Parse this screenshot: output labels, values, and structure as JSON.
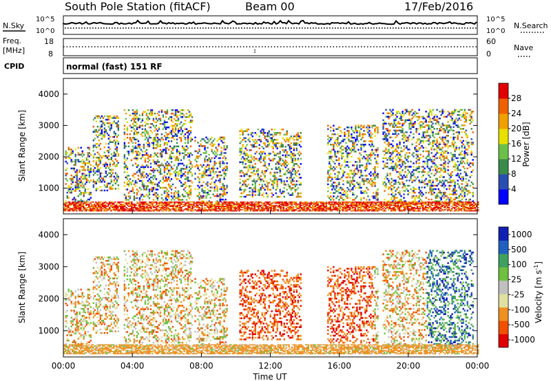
{
  "header": {
    "title": "South Pole Station (fitACF)",
    "beam": "Beam 00",
    "date": "17/Feb/2016"
  },
  "strip_panels": {
    "noise": {
      "left_label": "N.Sky",
      "right_label": "N.Search",
      "left_ticks": [
        "10^5",
        "10^0"
      ],
      "right_ticks": [
        "10^5",
        "10^0"
      ]
    },
    "freq": {
      "left_label_1": "Freq.",
      "left_label_2": "[MHz]",
      "left_ticks": [
        "18",
        "8"
      ],
      "right_label": "Nave",
      "right_ticks": [
        "60",
        "0"
      ]
    },
    "cpid": {
      "left_label": "CPID",
      "text": "normal (fast) 151 RF"
    }
  },
  "colors": {
    "power": [
      "#0000ff",
      "#2a4fb0",
      "#3a8a4a",
      "#6cc04a",
      "#e8e000",
      "#f0a000",
      "#f06000",
      "#e00000"
    ],
    "velocity": [
      "#e00000",
      "#f05000",
      "#f09020",
      "#e0e0a0",
      "#c0c0c0",
      "#70c040",
      "#40a060",
      "#2060c0",
      "#1020b0"
    ]
  },
  "chart_data": [
    {
      "type": "heatmap",
      "name": "power",
      "ylabel": "Slant Range [km]",
      "xlabel": "",
      "ylim": [
        180,
        4500
      ],
      "xlim": [
        0,
        24
      ],
      "x_ticks": [
        "00:00",
        "04:00",
        "08:00",
        "12:00",
        "16:00",
        "20:00",
        "00:00"
      ],
      "y_ticks": [
        1000,
        2000,
        3000,
        4000
      ],
      "colorbar": {
        "label": "Power [dB]",
        "ticks": [
          "4",
          "8",
          "12",
          "16",
          "20",
          "24",
          "28"
        ],
        "range": [
          0,
          30
        ]
      },
      "regions": [
        {
          "t0": 0.1,
          "t1": 1.6,
          "r0": 500,
          "r1": 2300
        },
        {
          "t0": 1.7,
          "t1": 3.2,
          "r0": 900,
          "r1": 3300
        },
        {
          "t0": 3.5,
          "t1": 7.5,
          "r0": 600,
          "r1": 3500
        },
        {
          "t0": 7.6,
          "t1": 9.5,
          "r0": 500,
          "r1": 2600
        },
        {
          "t0": 10.2,
          "t1": 13.8,
          "r0": 700,
          "r1": 2900
        },
        {
          "t0": 15.3,
          "t1": 18.2,
          "r0": 600,
          "r1": 3000
        },
        {
          "t0": 18.5,
          "t1": 23.7,
          "r0": 500,
          "r1": 3500
        },
        {
          "t0": 0.0,
          "t1": 24.0,
          "r0": 260,
          "r1": 550
        }
      ]
    },
    {
      "type": "heatmap",
      "name": "velocity",
      "ylabel": "Slant Range [km]",
      "xlabel": "Time UT",
      "ylim": [
        180,
        4500
      ],
      "xlim": [
        0,
        24
      ],
      "x_ticks": [
        "00:00",
        "04:00",
        "08:00",
        "12:00",
        "16:00",
        "20:00",
        "00:00"
      ],
      "y_ticks": [
        1000,
        2000,
        3000,
        4000
      ],
      "colorbar": {
        "label": "Velocity [m s",
        "label_sup": "-1",
        "label_end": "]",
        "ticks": [
          "1000",
          "500",
          "100",
          "25",
          "-25",
          "-100",
          "-500",
          "-1000"
        ]
      },
      "regions": [
        {
          "t0": 0.1,
          "t1": 1.6,
          "r0": 500,
          "r1": 2300
        },
        {
          "t0": 1.7,
          "t1": 3.2,
          "r0": 900,
          "r1": 3300
        },
        {
          "t0": 3.5,
          "t1": 7.5,
          "r0": 600,
          "r1": 3500
        },
        {
          "t0": 7.6,
          "t1": 9.5,
          "r0": 500,
          "r1": 2600
        },
        {
          "t0": 10.2,
          "t1": 13.8,
          "r0": 700,
          "r1": 2900
        },
        {
          "t0": 15.3,
          "t1": 18.2,
          "r0": 600,
          "r1": 3000
        },
        {
          "t0": 18.5,
          "t1": 23.7,
          "r0": 500,
          "r1": 3500
        },
        {
          "t0": 0.0,
          "t1": 24.0,
          "r0": 260,
          "r1": 550
        }
      ]
    }
  ]
}
